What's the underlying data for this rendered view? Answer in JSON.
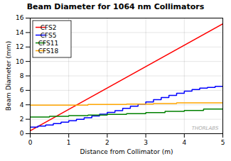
{
  "chart_data": {
    "type": "line",
    "title": "Beam Diameter for 1064 nm Collimators",
    "xlabel": "Distance from Collimator (m)",
    "ylabel": "Beam Diameter (mm)",
    "xlim": [
      0,
      5
    ],
    "ylim": [
      0,
      16
    ],
    "xticks": [
      0,
      1,
      2,
      3,
      4,
      5
    ],
    "yticks": [
      0,
      2,
      4,
      6,
      8,
      10,
      12,
      14,
      16
    ],
    "grid": true,
    "legend": "upper left",
    "annotations": [
      "THORLABS"
    ],
    "series": [
      {
        "name": "CFS2",
        "color": "#FF0000",
        "x": [
          0,
          5.0
        ],
        "values": [
          0.4,
          15.2
        ]
      },
      {
        "name": "CFS5",
        "color": "#0000FF",
        "x": [
          0,
          0.2,
          0.2,
          0.4,
          0.4,
          0.6,
          0.6,
          0.8,
          0.8,
          1.0,
          1.0,
          1.2,
          1.2,
          1.4,
          1.4,
          1.6,
          1.6,
          1.8,
          1.8,
          2.0,
          2.0,
          2.2,
          2.2,
          2.4,
          2.4,
          2.6,
          2.6,
          2.8,
          2.8,
          3.0,
          3.0,
          3.2,
          3.2,
          3.4,
          3.4,
          3.6,
          3.6,
          3.8,
          3.8,
          4.0,
          4.0,
          4.2,
          4.2,
          4.4,
          4.4,
          4.6,
          4.6,
          4.8,
          4.8,
          5.0
        ],
        "values": [
          0.9,
          0.9,
          1.05,
          1.05,
          1.2,
          1.2,
          1.4,
          1.4,
          1.6,
          1.6,
          1.8,
          1.8,
          2.0,
          2.0,
          2.2,
          2.2,
          2.45,
          2.45,
          2.7,
          2.7,
          2.95,
          2.95,
          3.2,
          3.2,
          3.5,
          3.5,
          3.8,
          3.8,
          4.1,
          4.1,
          4.4,
          4.4,
          4.7,
          4.7,
          5.0,
          5.0,
          5.3,
          5.3,
          5.6,
          5.6,
          5.9,
          5.9,
          6.1,
          6.1,
          6.3,
          6.3,
          6.4,
          6.4,
          6.55,
          6.55
        ]
      },
      {
        "name": "CFS11",
        "color": "#008000",
        "x": [
          0,
          0.5,
          0.5,
          1.0,
          1.0,
          1.5,
          1.5,
          2.0,
          2.0,
          2.5,
          2.5,
          3.0,
          3.0,
          3.5,
          3.5,
          4.0,
          4.0,
          4.5,
          4.5,
          5.0
        ],
        "values": [
          2.3,
          2.3,
          2.4,
          2.4,
          2.5,
          2.5,
          2.58,
          2.58,
          2.68,
          2.68,
          2.78,
          2.78,
          2.92,
          2.92,
          3.08,
          3.08,
          3.22,
          3.22,
          3.42,
          3.42
        ]
      },
      {
        "name": "CFS18",
        "color": "#FFA500",
        "x": [
          0,
          1.5,
          1.5,
          2.5,
          2.5,
          3.2,
          3.2,
          3.8,
          3.8,
          5.0
        ],
        "values": [
          3.95,
          3.95,
          4.05,
          4.05,
          4.1,
          4.1,
          4.18,
          4.18,
          4.28,
          4.28
        ]
      }
    ]
  }
}
